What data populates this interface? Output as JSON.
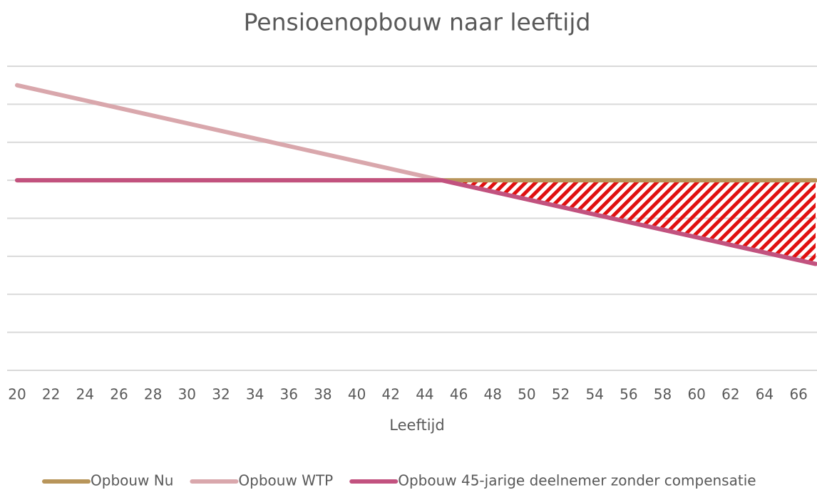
{
  "chart_data": {
    "type": "line",
    "title": "Pensioenopbouw naar leeftijd",
    "x_label": "Leeftijd",
    "x": [
      20,
      45,
      67
    ],
    "series": [
      {
        "name": "Opbouw Nu",
        "color": "#b8955a",
        "values": [
          5,
          5,
          5
        ]
      },
      {
        "name": "Opbouw WTP",
        "color": "#d9a7ac",
        "values": [
          7.5,
          5,
          2.8
        ]
      },
      {
        "name": "Opbouw 45-jarige deelnemer zonder compensatie",
        "color": "#c2527f",
        "values": [
          5,
          5,
          2.8
        ]
      }
    ],
    "xlim": [
      20,
      67
    ],
    "xticks": [
      20,
      22,
      24,
      26,
      28,
      30,
      32,
      34,
      36,
      38,
      40,
      42,
      44,
      46,
      48,
      50,
      52,
      54,
      56,
      58,
      60,
      62,
      64,
      66
    ],
    "ylim": [
      0,
      8
    ],
    "yticks": [
      0,
      1,
      2,
      3,
      4,
      5,
      6,
      7,
      8
    ],
    "grid": true,
    "legend": "bottom"
  }
}
